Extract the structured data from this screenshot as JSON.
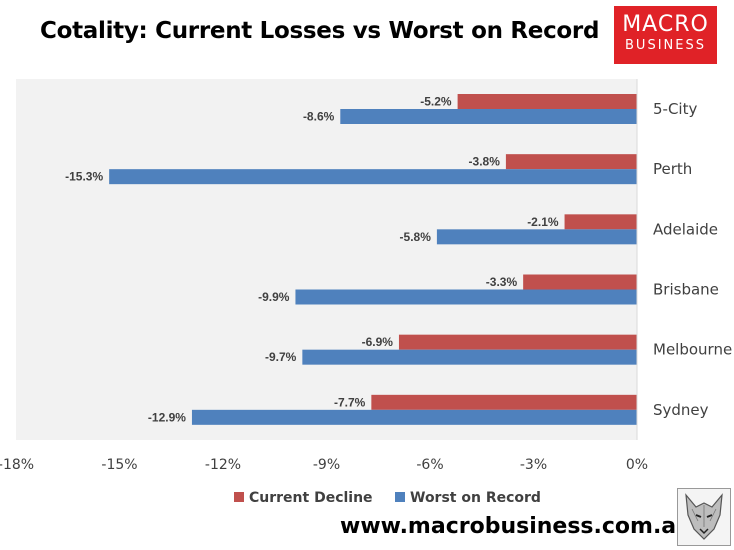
{
  "title": "Cotality: Current Losses vs Worst on Record",
  "logo": {
    "line1": "MACRO",
    "line2": "BUSINESS",
    "color": "#e02227"
  },
  "url": "www.macrobusiness.com.au",
  "chart_data": {
    "type": "bar",
    "orientation": "horizontal",
    "categories": [
      "5-City",
      "Perth",
      "Adelaide",
      "Brisbane",
      "Melbourne",
      "Sydney"
    ],
    "series": [
      {
        "name": "Current Decline",
        "color": "#c0504d",
        "values": [
          -5.2,
          -3.8,
          -2.1,
          -3.3,
          -6.9,
          -7.7
        ],
        "labels": [
          "-5.2%",
          "-3.8%",
          "-2.1%",
          "-3.3%",
          "-6.9%",
          "-7.7%"
        ]
      },
      {
        "name": "Worst on Record",
        "color": "#4f81bd",
        "values": [
          -8.6,
          -15.3,
          -5.8,
          -9.9,
          -9.7,
          -12.9
        ],
        "labels": [
          "-8.6%",
          "-15.3%",
          "-5.8%",
          "-9.9%",
          "-9.7%",
          "-12.9%"
        ]
      }
    ],
    "xlim": [
      -18,
      0
    ],
    "xticks": [
      -18,
      -15,
      -12,
      -9,
      -6,
      -3,
      0
    ],
    "xtick_labels": [
      "-18%",
      "-15%",
      "-12%",
      "-9%",
      "-6%",
      "-3%",
      "0%"
    ],
    "legend": "bottom",
    "grid": false,
    "plot_background": "#f2f2f2"
  }
}
